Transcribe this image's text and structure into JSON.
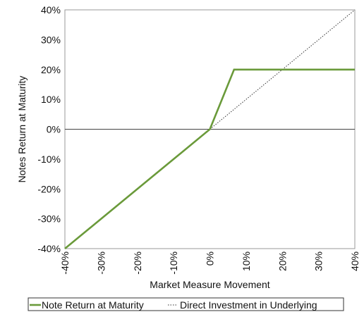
{
  "chart_data": {
    "type": "line",
    "xlabel": "Market Measure Movement",
    "ylabel": "Notes Return at Maturity",
    "xlim": [
      -40,
      40
    ],
    "ylim": [
      -40,
      40
    ],
    "x_ticks": [
      "-40%",
      "-30%",
      "-20%",
      "-10%",
      "0%",
      "10%",
      "20%",
      "30%",
      "40%"
    ],
    "y_ticks": [
      "40%",
      "30%",
      "20%",
      "10%",
      "0%",
      "-10%",
      "-20%",
      "-30%",
      "-40%"
    ],
    "grid": false,
    "legend_position": "bottom",
    "series": [
      {
        "name": "Note Return at Maturity",
        "style": "solid",
        "color": "#6a9a3a",
        "points": [
          [
            -40,
            -40
          ],
          [
            0,
            0
          ],
          [
            6.67,
            20
          ],
          [
            40,
            20
          ]
        ]
      },
      {
        "name": "Direct Investment in Underlying",
        "style": "dotted",
        "color": "#333333",
        "points": [
          [
            0,
            0
          ],
          [
            40,
            40
          ]
        ]
      }
    ]
  }
}
